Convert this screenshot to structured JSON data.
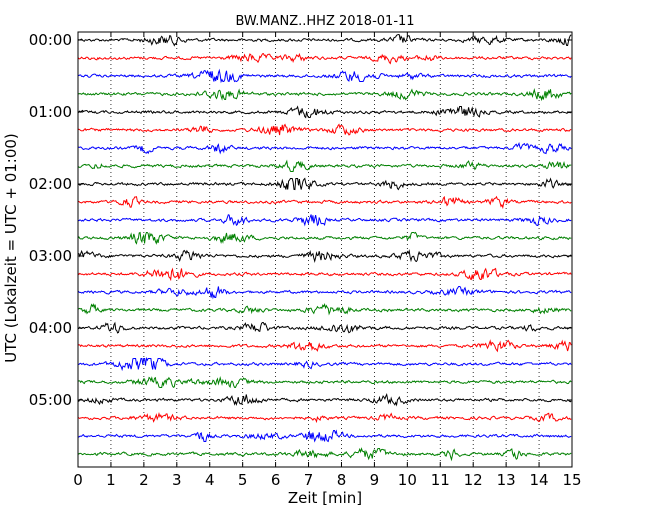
{
  "chart_data": {
    "type": "line",
    "title": "BW.MANZ..HHZ 2018-01-11",
    "xlabel": "Zeit  [min]",
    "ylabel": "UTC (Lokalzeit = UTC + 01:00)",
    "xlim": [
      0,
      15
    ],
    "x_ticks": [
      "0",
      "1",
      "2",
      "3",
      "4",
      "5",
      "6",
      "7",
      "8",
      "9",
      "10",
      "11",
      "12",
      "13",
      "14",
      "15"
    ],
    "y_tick_labels": [
      "00:00",
      "01:00",
      "02:00",
      "03:00",
      "04:00",
      "05:00"
    ],
    "grid": "vertical dotted lines at each minute",
    "trace_colors": [
      "#000000",
      "#ff0000",
      "#0000ff",
      "#008000"
    ],
    "traces": [
      {
        "start": "00:00",
        "color": "#000000"
      },
      {
        "start": "00:15",
        "color": "#ff0000"
      },
      {
        "start": "00:30",
        "color": "#0000ff"
      },
      {
        "start": "00:45",
        "color": "#008000"
      },
      {
        "start": "01:00",
        "color": "#000000"
      },
      {
        "start": "01:15",
        "color": "#ff0000"
      },
      {
        "start": "01:30",
        "color": "#0000ff"
      },
      {
        "start": "01:45",
        "color": "#008000"
      },
      {
        "start": "02:00",
        "color": "#000000"
      },
      {
        "start": "02:15",
        "color": "#ff0000"
      },
      {
        "start": "02:30",
        "color": "#0000ff"
      },
      {
        "start": "02:45",
        "color": "#008000"
      },
      {
        "start": "03:00",
        "color": "#000000"
      },
      {
        "start": "03:15",
        "color": "#ff0000"
      },
      {
        "start": "03:30",
        "color": "#0000ff"
      },
      {
        "start": "03:45",
        "color": "#008000"
      },
      {
        "start": "04:00",
        "color": "#000000"
      },
      {
        "start": "04:15",
        "color": "#ff0000"
      },
      {
        "start": "04:30",
        "color": "#0000ff"
      },
      {
        "start": "04:45",
        "color": "#008000"
      },
      {
        "start": "05:00",
        "color": "#000000"
      },
      {
        "start": "05:15",
        "color": "#ff0000"
      },
      {
        "start": "05:30",
        "color": "#0000ff"
      },
      {
        "start": "05:45",
        "color": "#008000"
      }
    ]
  }
}
